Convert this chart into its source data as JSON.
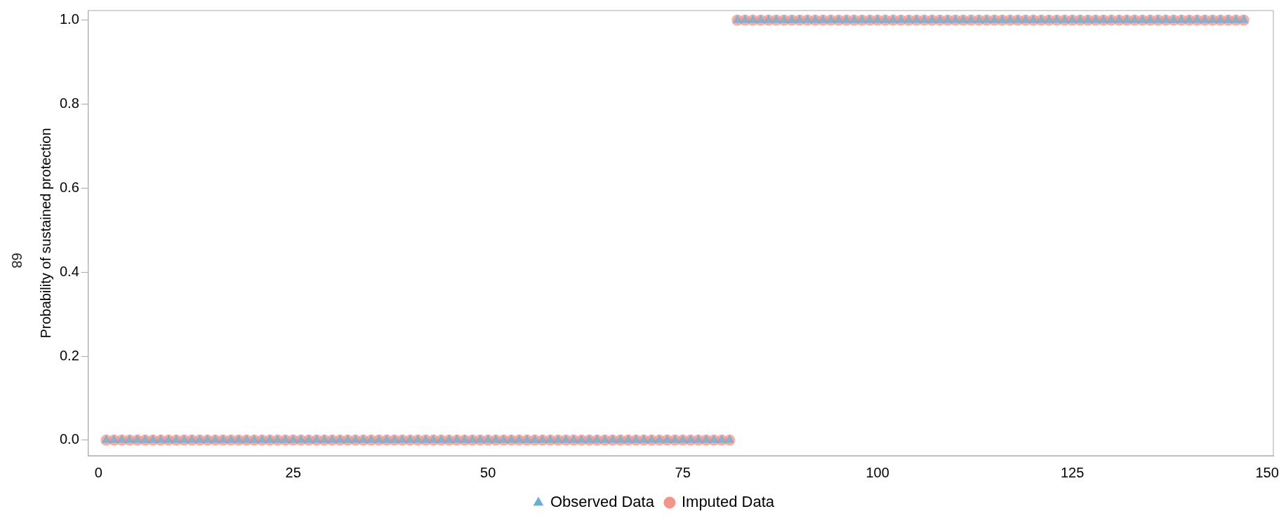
{
  "chart_data": {
    "type": "scatter",
    "ylabel": "Probability of sustained protection",
    "annotations": [
      "68"
    ],
    "x": [
      1,
      2,
      3,
      4,
      5,
      6,
      7,
      8,
      9,
      10,
      11,
      12,
      13,
      14,
      15,
      16,
      17,
      18,
      19,
      20,
      21,
      22,
      23,
      24,
      25,
      26,
      27,
      28,
      29,
      30,
      31,
      32,
      33,
      34,
      35,
      36,
      37,
      38,
      39,
      40,
      41,
      42,
      43,
      44,
      45,
      46,
      47,
      48,
      49,
      50,
      51,
      52,
      53,
      54,
      55,
      56,
      57,
      58,
      59,
      60,
      61,
      62,
      63,
      64,
      65,
      66,
      67,
      68,
      69,
      70,
      71,
      72,
      73,
      74,
      75,
      76,
      77,
      78,
      79,
      80,
      81,
      82,
      83,
      84,
      85,
      86,
      87,
      88,
      89,
      90,
      91,
      92,
      93,
      94,
      95,
      96,
      97,
      98,
      99,
      100,
      101,
      102,
      103,
      104,
      105,
      106,
      107,
      108,
      109,
      110,
      111,
      112,
      113,
      114,
      115,
      116,
      117,
      118,
      119,
      120,
      121,
      122,
      123,
      124,
      125,
      126,
      127,
      128,
      129,
      130,
      131,
      132,
      133,
      134,
      135,
      136,
      137,
      138,
      139,
      140,
      141,
      142,
      143,
      144,
      145,
      146,
      147
    ],
    "series": [
      {
        "name": "Observed Data",
        "color": "#6baed6",
        "marker": "triangle",
        "values": [
          0,
          0,
          0,
          0,
          0,
          0,
          0,
          0,
          0,
          0,
          0,
          0,
          0,
          0,
          0,
          0,
          0,
          0,
          0,
          0,
          0,
          0,
          0,
          0,
          0,
          0,
          0,
          0,
          0,
          0,
          0,
          0,
          0,
          0,
          0,
          0,
          0,
          0,
          0,
          0,
          0,
          0,
          0,
          0,
          0,
          0,
          0,
          0,
          0,
          0,
          0,
          0,
          0,
          0,
          0,
          0,
          0,
          0,
          0,
          0,
          0,
          0,
          0,
          0,
          0,
          0,
          0,
          0,
          0,
          0,
          0,
          0,
          0,
          0,
          0,
          0,
          0,
          0,
          0,
          0,
          0,
          1,
          1,
          1,
          1,
          1,
          1,
          1,
          1,
          1,
          1,
          1,
          1,
          1,
          1,
          1,
          1,
          1,
          1,
          1,
          1,
          1,
          1,
          1,
          1,
          1,
          1,
          1,
          1,
          1,
          1,
          1,
          1,
          1,
          1,
          1,
          1,
          1,
          1,
          1,
          1,
          1,
          1,
          1,
          1,
          1,
          1,
          1,
          1,
          1,
          1,
          1,
          1,
          1,
          1,
          1,
          1,
          1,
          1,
          1,
          1,
          1,
          1,
          1,
          1,
          1,
          1
        ]
      },
      {
        "name": "Imputed Data",
        "color": "#f4958b",
        "marker": "circle",
        "values": [
          0,
          0,
          0,
          0,
          0,
          0,
          0,
          0,
          0,
          0,
          0,
          0,
          0,
          0,
          0,
          0,
          0,
          0,
          0,
          0,
          0,
          0,
          0,
          0,
          0,
          0,
          0,
          0,
          0,
          0,
          0,
          0,
          0,
          0,
          0,
          0,
          0,
          0,
          0,
          0,
          0,
          0,
          0,
          0,
          0,
          0,
          0,
          0,
          0,
          0,
          0,
          0,
          0,
          0,
          0,
          0,
          0,
          0,
          0,
          0,
          0,
          0,
          0,
          0,
          0,
          0,
          0,
          0,
          0,
          0,
          0,
          0,
          0,
          0,
          0,
          0,
          0,
          0,
          0,
          0,
          0,
          1,
          1,
          1,
          1,
          1,
          1,
          1,
          1,
          1,
          1,
          1,
          1,
          1,
          1,
          1,
          1,
          1,
          1,
          1,
          1,
          1,
          1,
          1,
          1,
          1,
          1,
          1,
          1,
          1,
          1,
          1,
          1,
          1,
          1,
          1,
          1,
          1,
          1,
          1,
          1,
          1,
          1,
          1,
          1,
          1,
          1,
          1,
          1,
          1,
          1,
          1,
          1,
          1,
          1,
          1,
          1,
          1,
          1,
          1,
          1,
          1,
          1,
          1,
          1,
          1,
          1
        ]
      }
    ],
    "xlim": [
      -1.3,
      150.8
    ],
    "xticks": [
      0,
      25,
      50,
      75,
      100,
      125,
      150
    ],
    "ylim": [
      -0.037,
      1.023
    ],
    "yticks": [
      {
        "value": 0,
        "label": "0.0"
      },
      {
        "value": 0.2,
        "label": "0.2"
      },
      {
        "value": 0.4,
        "label": "0.4"
      },
      {
        "value": 0.6,
        "label": "0.6"
      },
      {
        "value": 0.8,
        "label": "0.8"
      },
      {
        "value": 1,
        "label": "1.0"
      }
    ],
    "grid": false,
    "legend": "bottom"
  }
}
